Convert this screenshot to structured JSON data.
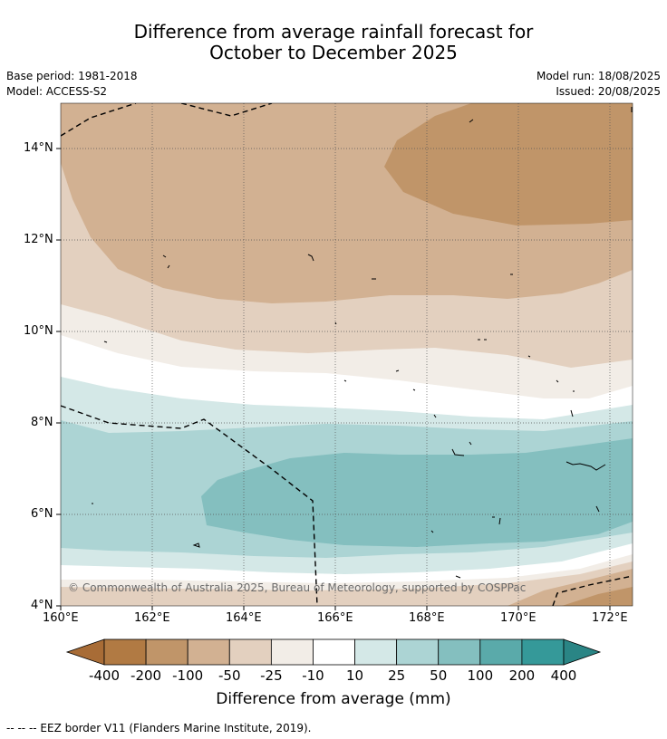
{
  "title": {
    "line1": "Difference from average rainfall forecast for",
    "line2": "October to December 2025"
  },
  "meta": {
    "base_period": "Base period: 1981-2018",
    "model": "Model: ACCESS-S2",
    "model_run": "Model run: 18/08/2025",
    "issued": "Issued: 20/08/2025"
  },
  "map": {
    "copyright": "© Commonwealth of Australia 2025, Bureau of Meteorology, supported by COSPPac",
    "lat_labels": [
      "14°N",
      "12°N",
      "10°N",
      "8°N",
      "6°N",
      "4°N"
    ],
    "lon_labels": [
      "160°E",
      "162°E",
      "164°E",
      "166°E",
      "168°E",
      "170°E",
      "172°E"
    ]
  },
  "colorbar": {
    "title": "Difference from average (mm)",
    "ticks": [
      "-400",
      "-200",
      "-100",
      "-50",
      "-25",
      "-10",
      "10",
      "25",
      "50",
      "100",
      "200",
      "400"
    ],
    "colors": [
      "#a86c36",
      "#b17a43",
      "#c09569",
      "#d2b192",
      "#e3d0bf",
      "#f2ede7",
      "#ffffff",
      "#d4e8e7",
      "#acd4d4",
      "#84bfbf",
      "#5aaaaa",
      "#359999",
      "#2a8585"
    ]
  },
  "footnote": "--  --  -- EEZ border V11 (Flanders Marine Institute, 2019)."
}
